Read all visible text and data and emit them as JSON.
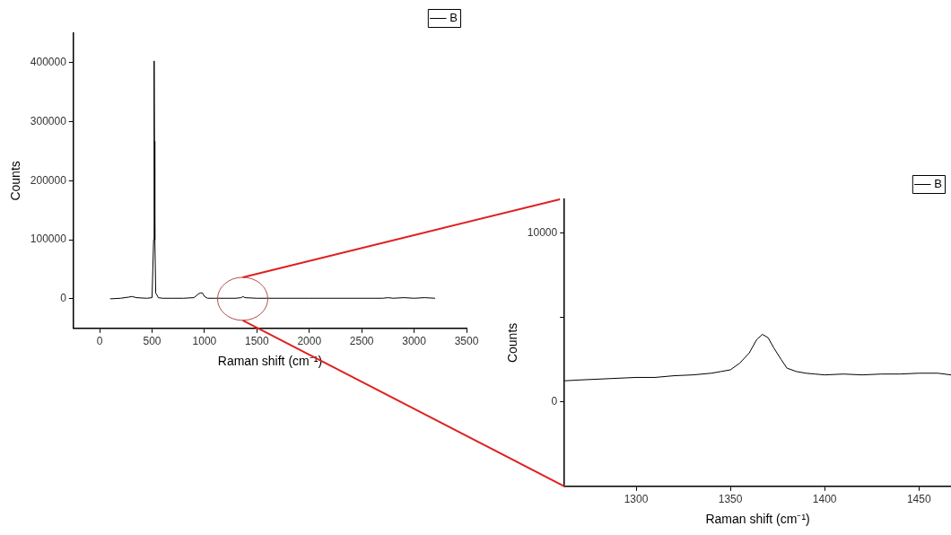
{
  "chart_data": [
    {
      "type": "line",
      "xlabel": "Raman shift (cm⁻¹)",
      "ylabel": "Counts",
      "xlim": [
        -250,
        3500
      ],
      "xticks": [
        0,
        500,
        1000,
        1500,
        2000,
        2500,
        3000,
        3500
      ],
      "ylim": [
        -50000,
        450000
      ],
      "yticks": [
        0,
        100000,
        200000,
        300000,
        400000
      ],
      "legend": "top right",
      "grid": false,
      "series": [
        {
          "name": "B",
          "color": "#000000",
          "x": [
            100,
            200,
            280,
            310,
            350,
            450,
            500,
            515,
            520,
            523,
            527,
            535,
            560,
            600,
            650,
            700,
            800,
            900,
            940,
            960,
            980,
            1000,
            1030,
            1100,
            1300,
            1350,
            1367,
            1385,
            1500,
            2000,
            2700,
            2750,
            2800,
            2900,
            3000,
            3100,
            3200
          ],
          "values": [
            0,
            1000,
            3000,
            4000,
            2000,
            1000,
            2000,
            100000,
            403000,
            267000,
            100000,
            10000,
            2000,
            1000,
            1000,
            1000,
            1000,
            2000,
            8000,
            10000,
            10000,
            4000,
            1000,
            1000,
            1000,
            2000,
            4000,
            2000,
            1000,
            1000,
            1000,
            2000,
            1000,
            2000,
            1000,
            2000,
            1000
          ]
        }
      ]
    },
    {
      "type": "line",
      "xlabel": "Raman shift (cm⁻¹)",
      "ylabel": "Counts",
      "xlim": [
        1262,
        1467
      ],
      "xticks": [
        1300,
        1350,
        1400,
        1450
      ],
      "ylim": [
        -5000,
        12000
      ],
      "yticks": [
        0,
        {
          "value": 5000,
          "label": null
        },
        10000
      ],
      "legend": "top right",
      "grid": false,
      "series": [
        {
          "name": "B",
          "color": "#000000",
          "x": [
            1262,
            1270,
            1280,
            1290,
            1300,
            1310,
            1320,
            1330,
            1340,
            1345,
            1350,
            1355,
            1360,
            1364,
            1367,
            1370,
            1373,
            1377,
            1380,
            1385,
            1390,
            1395,
            1400,
            1410,
            1420,
            1430,
            1440,
            1450,
            1460,
            1467
          ],
          "values": [
            1250,
            1300,
            1350,
            1400,
            1450,
            1450,
            1550,
            1600,
            1700,
            1800,
            1900,
            2300,
            2900,
            3700,
            4000,
            3800,
            3200,
            2500,
            2000,
            1800,
            1700,
            1650,
            1600,
            1650,
            1600,
            1650,
            1650,
            1700,
            1700,
            1600
          ]
        }
      ]
    }
  ]
}
